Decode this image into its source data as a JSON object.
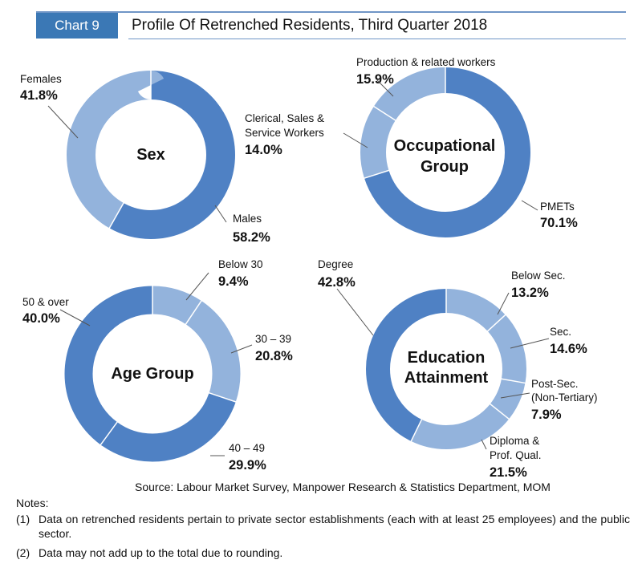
{
  "header": {
    "badge": "Chart 9",
    "title": "Profile Of Retrenched Residents, Third Quarter 2018"
  },
  "colors": {
    "dark": "#4f81c4",
    "light": "#93b3dc",
    "badge": "#3b78b5"
  },
  "chart_data": [
    {
      "type": "pie",
      "title": "Sex",
      "slices": [
        {
          "label": "Males",
          "value": 58.2,
          "display": "58.2%",
          "shade": "dark"
        },
        {
          "label": "Females",
          "value": 41.8,
          "display": "41.8%",
          "shade": "light"
        }
      ]
    },
    {
      "type": "pie",
      "title": "Occupational Group",
      "slices": [
        {
          "label": "PMETs",
          "value": 70.1,
          "display": "70.1%",
          "shade": "dark"
        },
        {
          "label": "Clerical, Sales & Service Workers",
          "value": 14.0,
          "display": "14.0%",
          "shade": "light"
        },
        {
          "label": "Production & related workers",
          "value": 15.9,
          "display": "15.9%",
          "shade": "light"
        }
      ]
    },
    {
      "type": "pie",
      "title": "Age Group",
      "slices": [
        {
          "label": "Below 30",
          "value": 9.4,
          "display": "9.4%",
          "shade": "light"
        },
        {
          "label": "30 – 39",
          "value": 20.8,
          "display": "20.8%",
          "shade": "light"
        },
        {
          "label": "40 – 49",
          "value": 29.9,
          "display": "29.9%",
          "shade": "dark"
        },
        {
          "label": "50 & over",
          "value": 40.0,
          "display": "40.0%",
          "shade": "dark"
        }
      ]
    },
    {
      "type": "pie",
      "title": "Education Attainment",
      "slices": [
        {
          "label": "Below Sec.",
          "value": 13.2,
          "display": "13.2%",
          "shade": "light"
        },
        {
          "label": "Sec.",
          "value": 14.6,
          "display": "14.6%",
          "shade": "light"
        },
        {
          "label": "Post-Sec. (Non-Tertiary)",
          "value": 7.9,
          "display": "7.9%",
          "shade": "light"
        },
        {
          "label": "Diploma & Prof. Qual.",
          "value": 21.5,
          "display": "21.5%",
          "shade": "light"
        },
        {
          "label": "Degree",
          "value": 42.8,
          "display": "42.8%",
          "shade": "dark"
        }
      ]
    }
  ],
  "source": "Source: Labour Market Survey, Manpower Research & Statistics Department, MOM",
  "notes": {
    "heading": "Notes:",
    "items": [
      {
        "num": "(1)",
        "text": "Data on retrenched residents pertain to private sector establishments (each with at least 25 employees) and the public sector."
      },
      {
        "num": "(2)",
        "text": "Data may not add up to the total due to rounding."
      }
    ]
  }
}
